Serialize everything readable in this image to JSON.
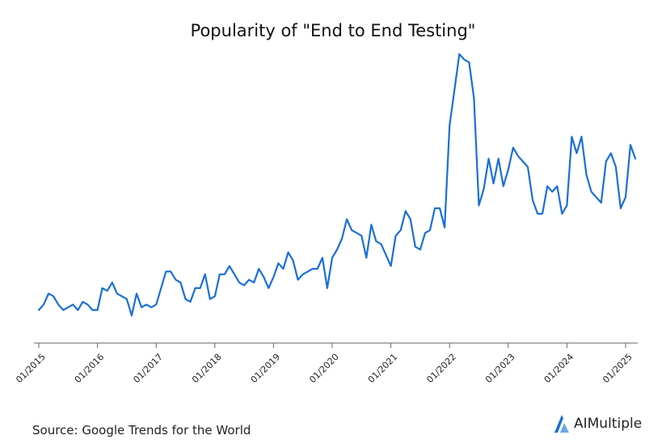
{
  "chart_data": {
    "type": "line",
    "title": "Popularity of \"End to End Testing\"",
    "xlabel": "",
    "ylabel": "",
    "ylim": [
      0,
      100
    ],
    "grid": false,
    "legend": "none",
    "line_color": "#1a6fd8",
    "x_start": "01/2015",
    "x_step_months": 1,
    "tick_labels": [
      "01/2015",
      "01/2016",
      "01/2017",
      "01/2018",
      "01/2019",
      "01/2020",
      "01/2021",
      "01/2022",
      "01/2023",
      "01/2024",
      "01/2025"
    ],
    "series": [
      {
        "values": [
          7,
          9,
          13,
          12,
          9,
          7,
          8,
          9,
          7,
          10,
          9,
          7,
          7,
          15,
          14,
          17,
          13,
          12,
          11,
          5,
          13,
          8,
          9,
          8,
          9,
          15,
          21,
          21,
          18,
          17,
          11,
          10,
          15,
          15,
          20,
          11,
          12,
          20,
          20,
          23,
          20,
          17,
          16,
          18,
          17,
          22,
          19,
          15,
          19,
          24,
          22,
          28,
          25,
          18,
          20,
          21,
          22,
          22,
          26,
          15,
          26,
          29,
          33,
          40,
          36,
          35,
          34,
          26,
          38,
          32,
          31,
          27,
          23,
          34,
          36,
          43,
          40,
          30,
          29,
          35,
          36,
          44,
          44,
          37,
          74,
          87,
          100,
          98,
          97,
          84,
          45,
          51,
          62,
          53,
          62,
          52,
          58,
          66,
          63,
          61,
          59,
          47,
          42,
          42,
          52,
          50,
          52,
          42,
          45,
          70,
          64,
          70,
          56,
          50,
          48,
          46,
          61,
          64,
          59,
          44,
          48,
          67,
          62
        ]
      }
    ]
  },
  "footer": {
    "source": "Source: Google Trends for the World",
    "brand": "AIMultiple",
    "brand_color": "#1a6fd8"
  }
}
